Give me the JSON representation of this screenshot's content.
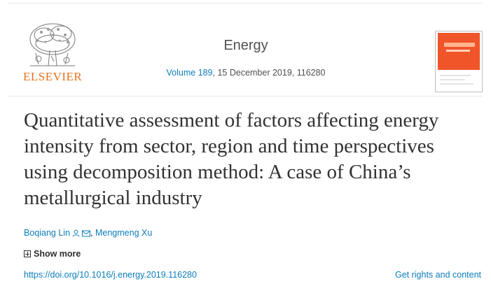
{
  "header": {
    "publisher_logo_text": "ELSEVIER",
    "journal_title": "Energy",
    "volume_link": "Volume 189",
    "issue_details": ", 15 December 2019, 116280",
    "cover_icon": "journal-cover-icon"
  },
  "article": {
    "title": "Quantitative assessment of factors affecting energy intensity from sector, region and time perspectives using decomposition method: A case of China’s metallurgical industry",
    "authors": [
      {
        "name": "Boqiang Lin",
        "icons": [
          "person-icon",
          "envelope-icon"
        ]
      },
      {
        "separator": ", "
      },
      {
        "name": "Mengmeng Xu"
      }
    ],
    "show_more_label": "Show more",
    "doi": "https://doi.org/10.1016/j.energy.2019.116280",
    "rights_label": "Get rights and content"
  },
  "colors": {
    "link": "#0c7dbb",
    "elsevier_orange": "#e9711c",
    "cover_orange": "#f0552a",
    "title_text": "#323232"
  }
}
